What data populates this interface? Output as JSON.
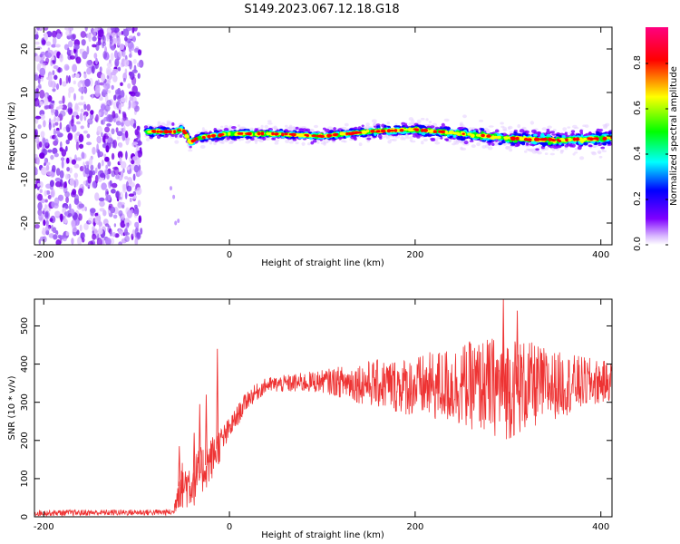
{
  "title": "S149.2023.067.12.18.G18",
  "chart_data": [
    {
      "type": "heatmap",
      "xlabel": "Height of straight line (km)",
      "ylabel": "Frequency (Hz)",
      "xlim": [
        -210,
        412
      ],
      "ylim": [
        -25,
        25
      ],
      "x_ticks": [
        -200,
        0,
        200,
        400
      ],
      "y_ticks": [
        -20,
        -10,
        0,
        10,
        20
      ],
      "colorbar": {
        "label": "Normalized spectral amplitude",
        "range": [
          0.0,
          0.96
        ],
        "ticks": [
          0.0,
          0.2,
          0.4,
          0.6,
          0.8
        ],
        "colormap": [
          "#ffffff",
          "#7f00ff",
          "#0000ff",
          "#00ffff",
          "#00ff00",
          "#ffff00",
          "#ff0000",
          "#ff0080"
        ]
      },
      "noise_region_x": [
        -210,
        -95
      ],
      "signal_start_x": -90,
      "ridge_frequency_hz": 0.5,
      "ridge_profile": [
        {
          "x": -90,
          "f": 1.0
        },
        {
          "x": -60,
          "f": 1.0
        },
        {
          "x": -50,
          "f": 1.5
        },
        {
          "x": -42,
          "f": -1.5
        },
        {
          "x": -35,
          "f": -0.5
        },
        {
          "x": -20,
          "f": 0.0
        },
        {
          "x": 0,
          "f": 0.5
        },
        {
          "x": 50,
          "f": 0.5
        },
        {
          "x": 100,
          "f": 0.0
        },
        {
          "x": 150,
          "f": 1.0
        },
        {
          "x": 200,
          "f": 1.5
        },
        {
          "x": 250,
          "f": 0.5
        },
        {
          "x": 300,
          "f": -0.5
        },
        {
          "x": 350,
          "f": -1.0
        },
        {
          "x": 412,
          "f": -0.5
        }
      ]
    },
    {
      "type": "line",
      "xlabel": "Height of straight line (km)",
      "ylabel": "SNR (10 * v/v)",
      "xlim": [
        -210,
        412
      ],
      "ylim": [
        0,
        570
      ],
      "x_ticks": [
        -200,
        0,
        200,
        400
      ],
      "y_ticks": [
        0,
        100,
        200,
        300,
        400,
        500
      ],
      "color": "#ee3333",
      "envelope": [
        {
          "x": -210,
          "mean": 10,
          "spread": 8
        },
        {
          "x": -60,
          "mean": 12,
          "spread": 8
        },
        {
          "x": -55,
          "mean": 80,
          "spread": 60
        },
        {
          "x": -40,
          "mean": 90,
          "spread": 70
        },
        {
          "x": -20,
          "mean": 150,
          "spread": 60
        },
        {
          "x": 0,
          "mean": 230,
          "spread": 30
        },
        {
          "x": 20,
          "mean": 310,
          "spread": 25
        },
        {
          "x": 40,
          "mean": 345,
          "spread": 20
        },
        {
          "x": 100,
          "mean": 355,
          "spread": 30
        },
        {
          "x": 150,
          "mean": 350,
          "spread": 60
        },
        {
          "x": 200,
          "mean": 340,
          "spread": 80
        },
        {
          "x": 250,
          "mean": 345,
          "spread": 110
        },
        {
          "x": 300,
          "mean": 340,
          "spread": 140
        },
        {
          "x": 350,
          "mean": 345,
          "spread": 90
        },
        {
          "x": 412,
          "mean": 355,
          "spread": 50
        }
      ],
      "peaks": [
        {
          "x": -54,
          "y": 185
        },
        {
          "x": -38,
          "y": 220
        },
        {
          "x": -32,
          "y": 295
        },
        {
          "x": -25,
          "y": 320
        },
        {
          "x": -13,
          "y": 440
        },
        {
          "x": 295,
          "y": 570
        },
        {
          "x": 310,
          "y": 540
        }
      ]
    }
  ]
}
